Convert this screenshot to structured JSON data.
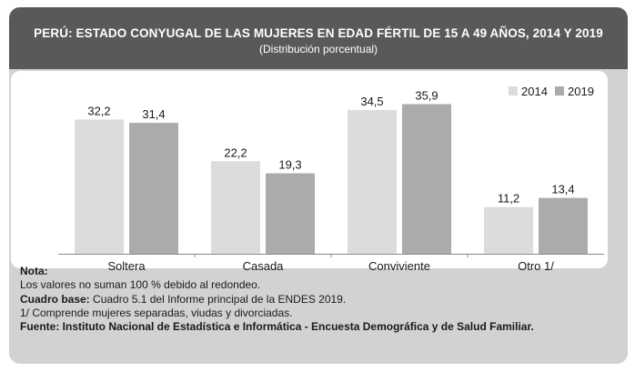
{
  "title": "PERÚ: ESTADO CONYUGAL DE LAS MUJERES EN EDAD FÉRTIL DE 15 A 49 AÑOS, 2014 Y 2019",
  "subtitle": "(Distribución porcentual)",
  "colors": {
    "series_2014": "#dcdcdc",
    "series_2019": "#ababab",
    "header": "#595959",
    "background": "#d2d2d2"
  },
  "chart_data": {
    "type": "bar",
    "categories": [
      "Soltera",
      "Casada",
      "Conviviente",
      "Otro 1/"
    ],
    "series": [
      {
        "name": "2014",
        "values": [
          32.2,
          22.2,
          34.5,
          11.2
        ],
        "labels": [
          "32,2",
          "22,2",
          "34,5",
          "11,2"
        ]
      },
      {
        "name": "2019",
        "values": [
          31.4,
          19.3,
          35.9,
          13.4
        ],
        "labels": [
          "31,4",
          "19,3",
          "35,9",
          "13,4"
        ]
      }
    ],
    "legend": "top-right",
    "grid": false,
    "ylim": [
      0,
      36
    ]
  },
  "notes": {
    "nota_label": "Nota:",
    "line1": "Los valores no suman 100 % debido al redondeo.",
    "cuadro_label": "Cuadro base:",
    "cuadro_text": "Cuadro 5.1 del Informe principal de la ENDES 2019.",
    "line3": "1/ Comprende mujeres separadas, viudas y divorciadas.",
    "fuente": "Fuente: Instituto Nacional de Estadística e Informática - Encuesta Demográfica y de Salud Familiar."
  }
}
